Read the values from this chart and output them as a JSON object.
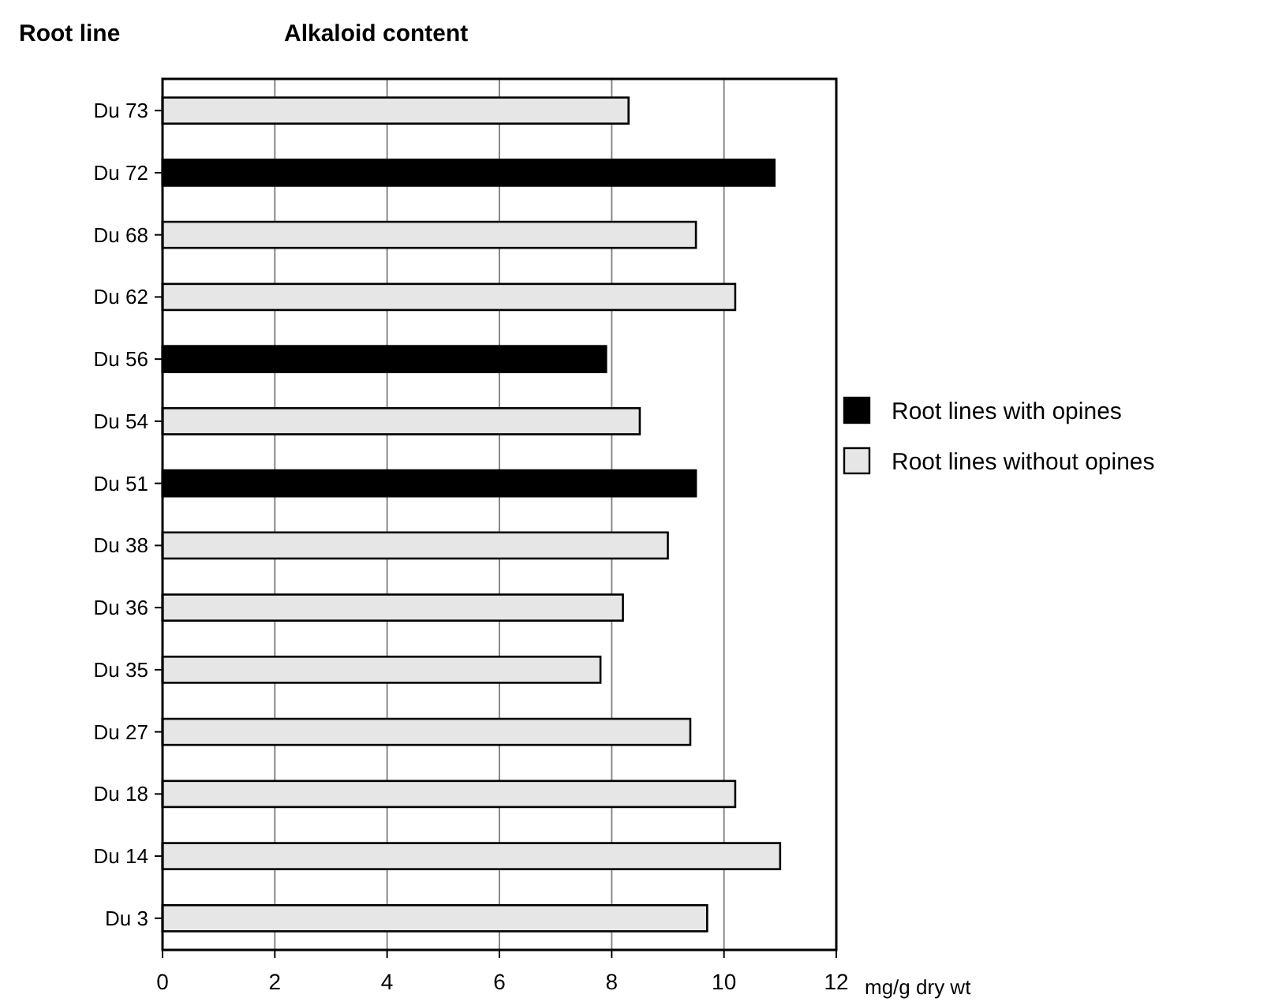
{
  "chart_data": {
    "type": "bar",
    "orientation": "horizontal",
    "title": "Alkaloid content",
    "ylabel": "Root line",
    "xlabel": "mg/g dry wt",
    "categories": [
      "Du 73",
      "Du 72",
      "Du 68",
      "Du 62",
      "Du 56",
      "Du 54",
      "Du 51",
      "Du 38",
      "Du 36",
      "Du 35",
      "Du 27",
      "Du 18",
      "Du 14",
      "Du 3"
    ],
    "series": [
      {
        "name": "Root lines with opines",
        "color": "#000000",
        "values": [
          null,
          10.9,
          null,
          null,
          7.9,
          null,
          9.5,
          null,
          null,
          null,
          null,
          null,
          null,
          null
        ]
      },
      {
        "name": "Root lines without opines",
        "color": "#e6e6e6",
        "values": [
          8.3,
          null,
          9.5,
          10.2,
          null,
          8.5,
          null,
          9.0,
          8.2,
          7.8,
          9.4,
          10.2,
          11.0,
          9.7
        ]
      }
    ],
    "xlim": [
      0,
      12
    ],
    "xticks": [
      0,
      2,
      4,
      6,
      8,
      10,
      12
    ],
    "grid": "x",
    "legend": "right"
  }
}
